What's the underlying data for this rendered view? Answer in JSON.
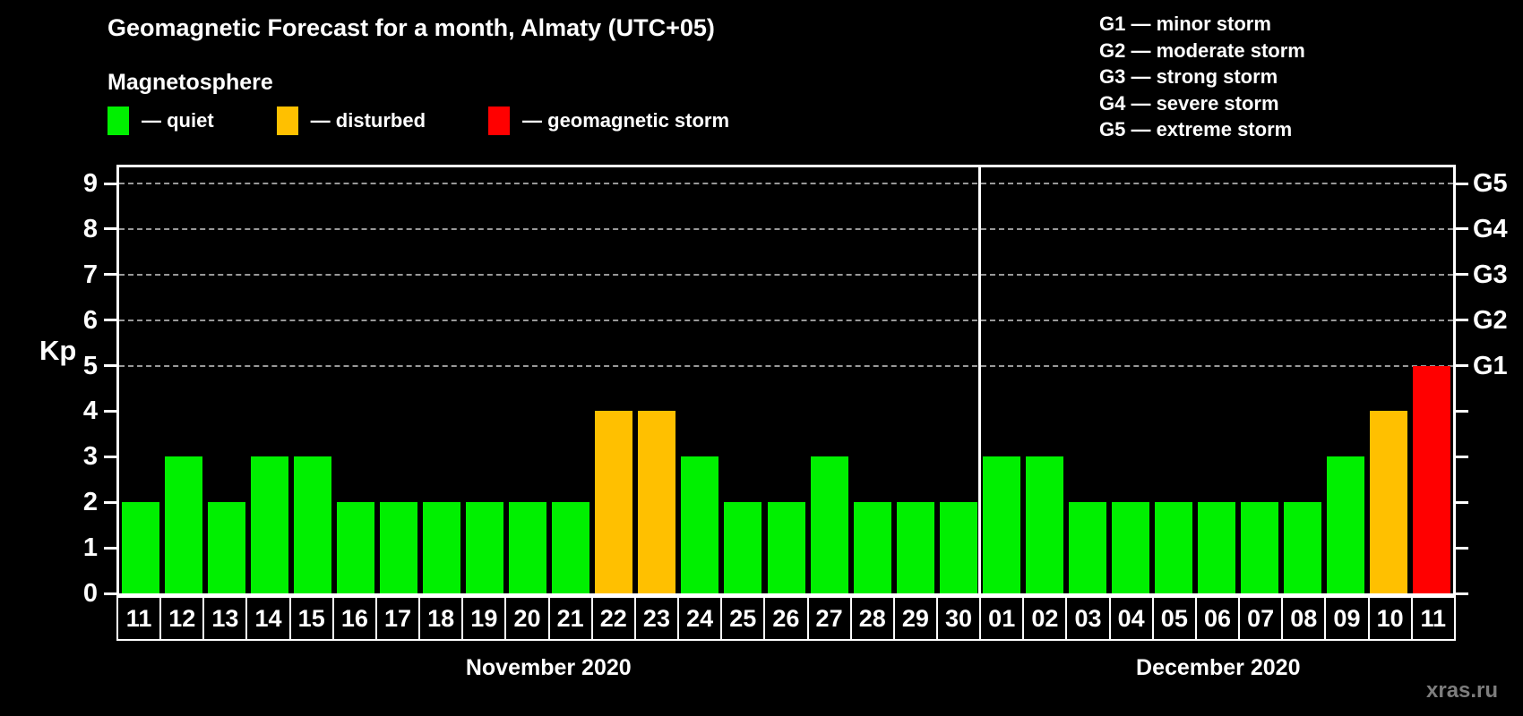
{
  "title": "Geomagnetic Forecast for a month, Almaty (UTC+05)",
  "subtitle": "Magnetosphere",
  "watermark": "xras.ru",
  "legend": [
    {
      "key": "quiet",
      "label": "— quiet"
    },
    {
      "key": "disturbed",
      "label": "— disturbed"
    },
    {
      "key": "storm",
      "label": "— geomagnetic storm"
    }
  ],
  "storm_scale": [
    "G1 — minor storm",
    "G2 — moderate storm",
    "G3 — strong storm",
    "G4 — severe storm",
    "G5 — extreme storm"
  ],
  "colors": {
    "quiet": "#00f000",
    "disturbed": "#ffc000",
    "storm": "#ff0000",
    "axis": "#ffffff",
    "grid": "#999999",
    "watermark": "#7d7d7d",
    "background": "#000000"
  },
  "chart_data": {
    "type": "bar",
    "ylabel": "Kp",
    "ylim": [
      0,
      9.35
    ],
    "yticks": [
      0,
      1,
      2,
      3,
      4,
      5,
      6,
      7,
      8,
      9
    ],
    "grid": "dashed horizontal lines at Kp 5..9 (G1..G5)",
    "legend_position": "top-left (magnetosphere states), top-right (G storm scale)",
    "right_axis": [
      {
        "kp": 5,
        "label": "G1"
      },
      {
        "kp": 6,
        "label": "G2"
      },
      {
        "kp": 7,
        "label": "G3"
      },
      {
        "kp": 8,
        "label": "G4"
      },
      {
        "kp": 9,
        "label": "G5"
      }
    ],
    "months": [
      {
        "label": "November 2020",
        "categories": [
          "11",
          "12",
          "13",
          "14",
          "15",
          "16",
          "17",
          "18",
          "19",
          "20",
          "21",
          "22",
          "23",
          "24",
          "25",
          "26",
          "27",
          "28",
          "29",
          "30"
        ],
        "values": [
          2,
          3,
          2,
          3,
          3,
          2,
          2,
          2,
          2,
          2,
          2,
          4,
          4,
          3,
          2,
          2,
          3,
          2,
          2,
          2
        ],
        "status": [
          "quiet",
          "quiet",
          "quiet",
          "quiet",
          "quiet",
          "quiet",
          "quiet",
          "quiet",
          "quiet",
          "quiet",
          "quiet",
          "disturbed",
          "disturbed",
          "quiet",
          "quiet",
          "quiet",
          "quiet",
          "quiet",
          "quiet",
          "quiet"
        ]
      },
      {
        "label": "December 2020",
        "categories": [
          "01",
          "02",
          "03",
          "04",
          "05",
          "06",
          "07",
          "08",
          "09",
          "10",
          "11"
        ],
        "values": [
          3,
          3,
          2,
          2,
          2,
          2,
          2,
          2,
          3,
          4,
          5
        ],
        "status": [
          "quiet",
          "quiet",
          "quiet",
          "quiet",
          "quiet",
          "quiet",
          "quiet",
          "quiet",
          "quiet",
          "disturbed",
          "storm"
        ]
      }
    ]
  }
}
